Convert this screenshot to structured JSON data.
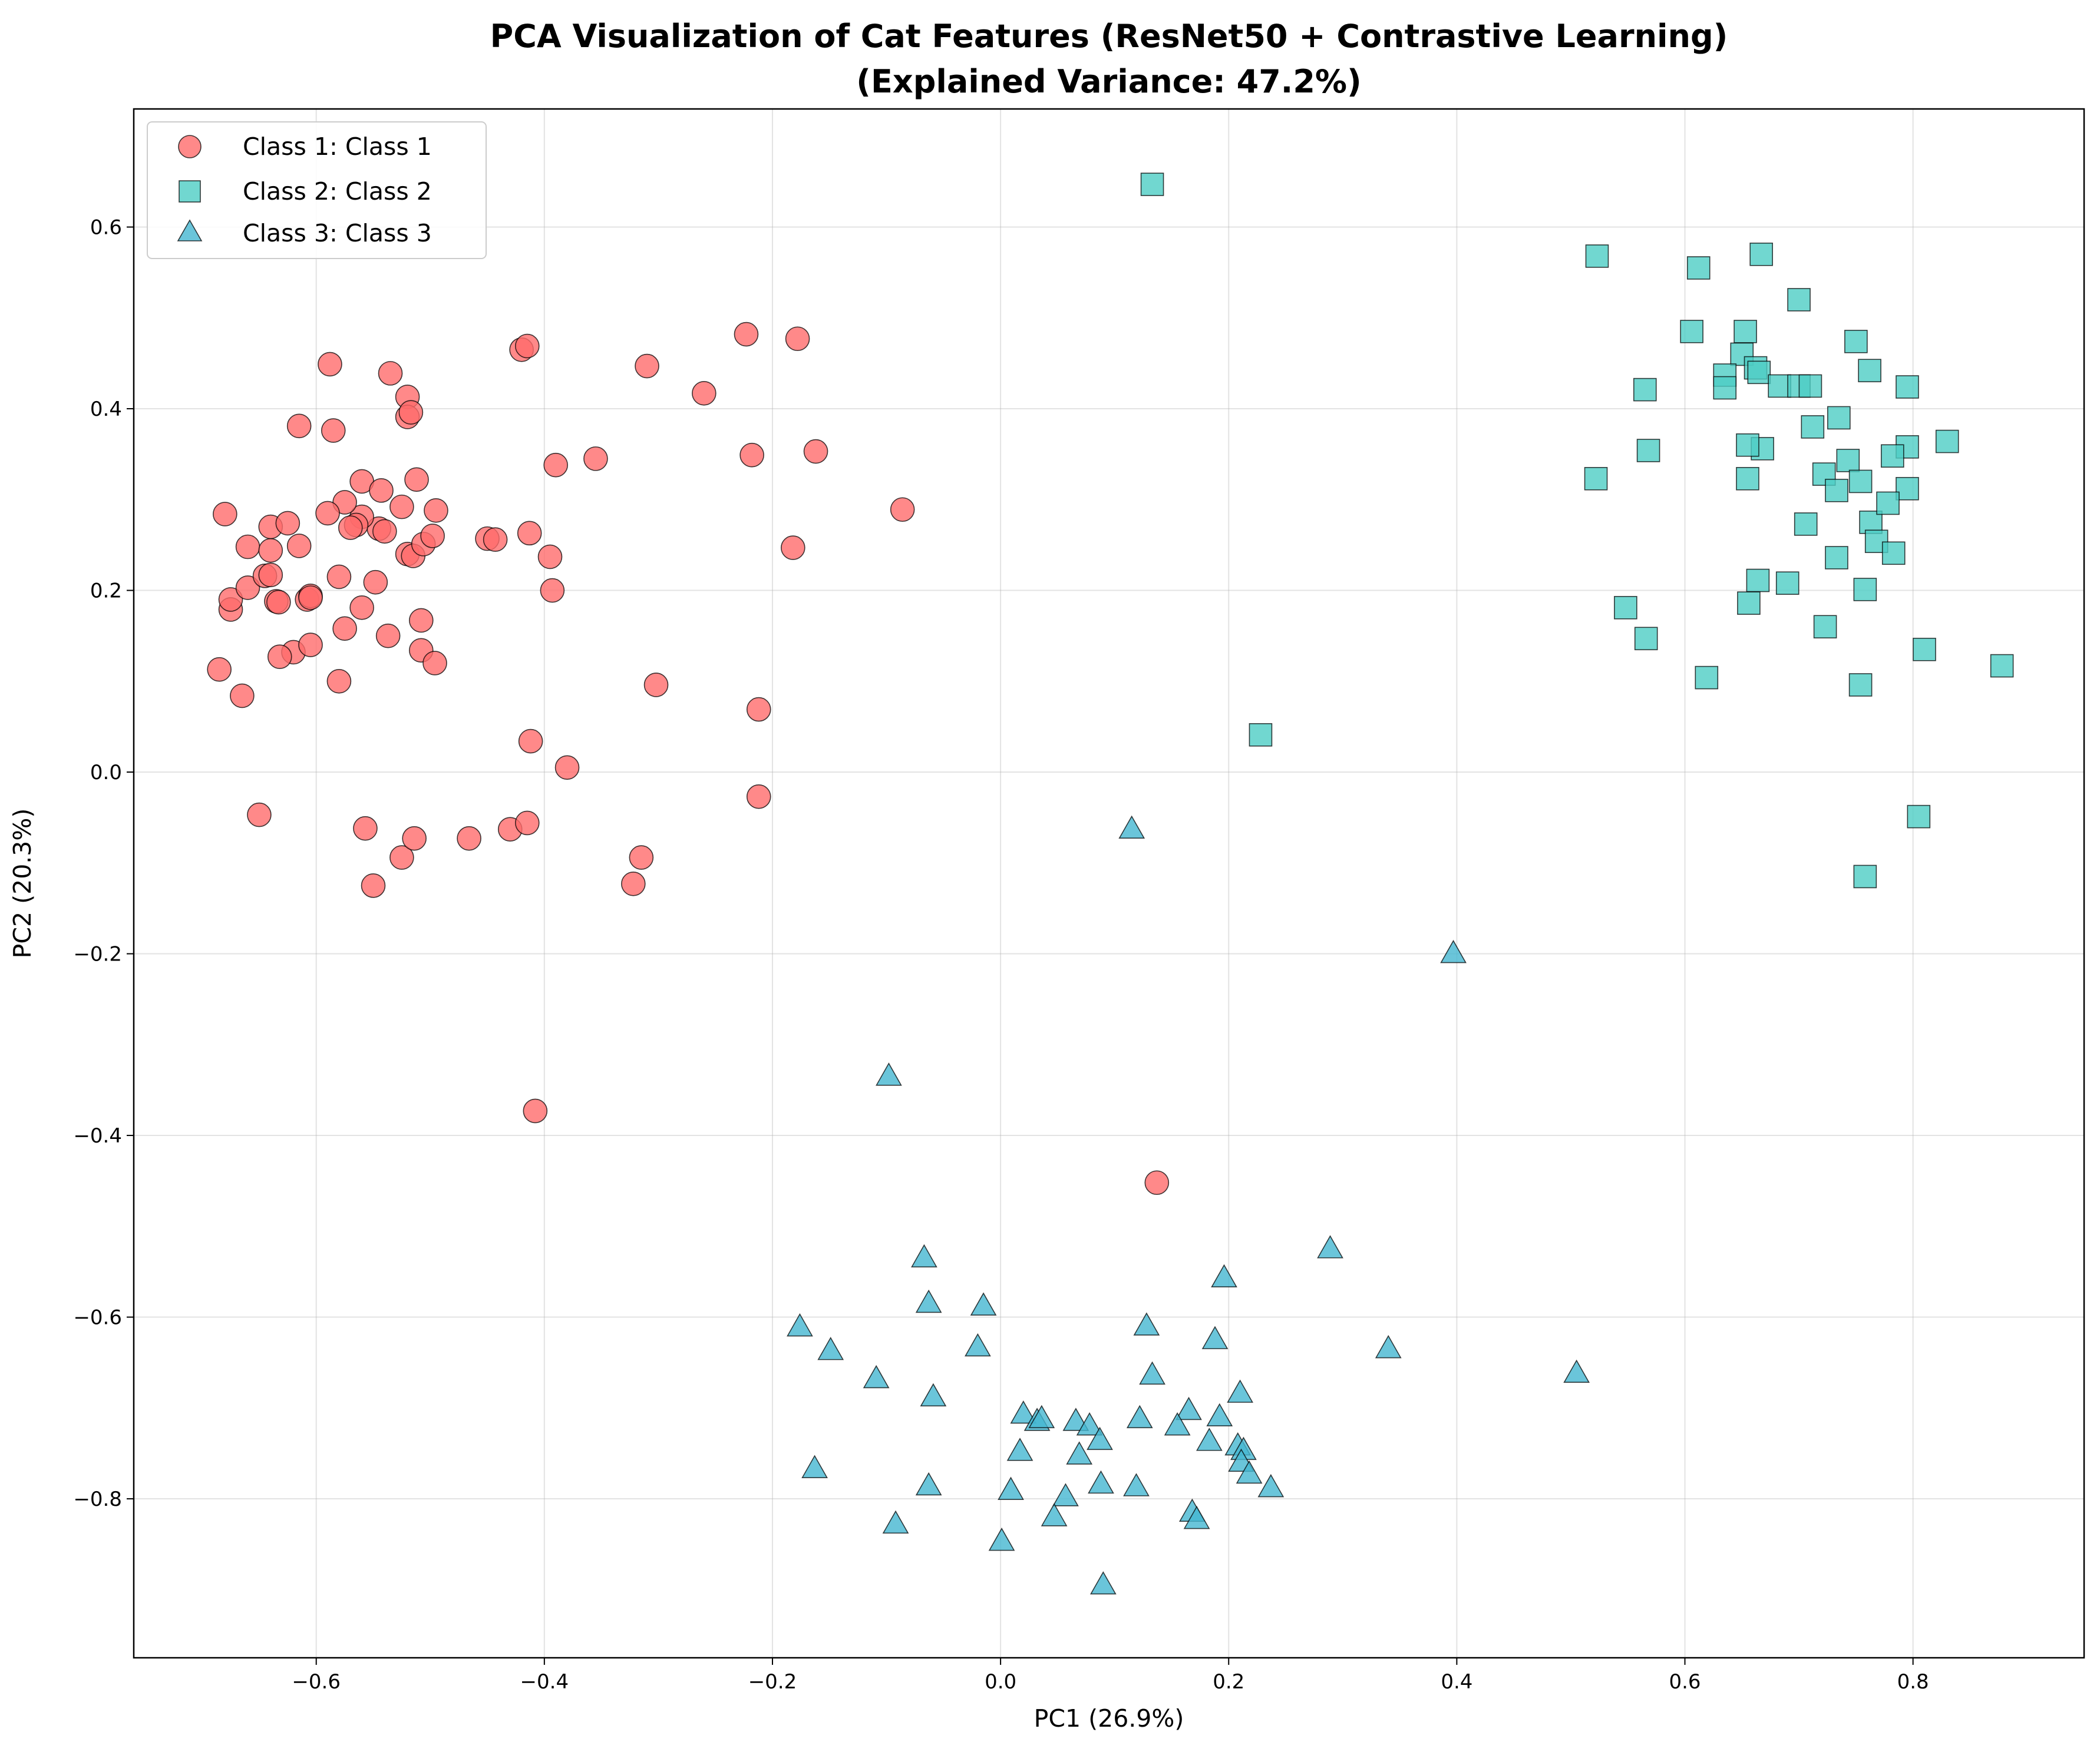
{
  "chart_data": {
    "type": "scatter",
    "title": "PCA Visualization of Cat Features (ResNet50 + Contrastive Learning)",
    "subtitle": "(Explained Variance: 47.2%)",
    "xlabel": "PC1 (26.9%)",
    "ylabel": "PC2 (20.3%)",
    "xlim": [
      -0.76,
      0.95
    ],
    "ylim": [
      -0.975,
      0.73
    ],
    "xticks": [
      -0.6,
      -0.4,
      -0.2,
      0.0,
      0.2,
      0.4,
      0.6,
      0.8
    ],
    "xtick_labels": [
      "−0.6",
      "−0.4",
      "−0.2",
      "0.0",
      "0.2",
      "0.4",
      "0.6",
      "0.8"
    ],
    "yticks": [
      -0.8,
      -0.6,
      -0.4,
      -0.2,
      0.0,
      0.2,
      0.4,
      0.6
    ],
    "ytick_labels": [
      "−0.8",
      "−0.6",
      "−0.4",
      "−0.2",
      "0.0",
      "0.2",
      "0.4",
      "0.6"
    ],
    "grid": true,
    "legend_position": "top-left",
    "series": [
      {
        "name": "Class 1: Class 1",
        "marker": "circle",
        "color": "#ff6b6b",
        "points": [
          [
            -0.68,
            0.284
          ],
          [
            -0.66,
            0.248
          ],
          [
            -0.64,
            0.244
          ],
          [
            -0.64,
            0.27
          ],
          [
            -0.625,
            0.274
          ],
          [
            -0.615,
            0.249
          ],
          [
            -0.675,
            0.179
          ],
          [
            -0.675,
            0.19
          ],
          [
            -0.66,
            0.203
          ],
          [
            -0.645,
            0.216
          ],
          [
            -0.64,
            0.217
          ],
          [
            -0.635,
            0.188
          ],
          [
            -0.633,
            0.187
          ],
          [
            -0.608,
            0.19
          ],
          [
            -0.605,
            0.194
          ],
          [
            -0.62,
            0.132
          ],
          [
            -0.632,
            0.127
          ],
          [
            -0.605,
            0.14
          ],
          [
            -0.685,
            0.113
          ],
          [
            -0.665,
            0.084
          ],
          [
            -0.605,
            0.192
          ],
          [
            -0.58,
            0.215
          ],
          [
            -0.58,
            0.1
          ],
          [
            -0.575,
            0.158
          ],
          [
            -0.56,
            0.181
          ],
          [
            -0.548,
            0.209
          ],
          [
            -0.52,
            0.24
          ],
          [
            -0.515,
            0.238
          ],
          [
            -0.506,
            0.251
          ],
          [
            -0.498,
            0.26
          ],
          [
            -0.495,
            0.288
          ],
          [
            -0.525,
            0.292
          ],
          [
            -0.545,
            0.268
          ],
          [
            -0.56,
            0.32
          ],
          [
            -0.543,
            0.31
          ],
          [
            -0.512,
            0.322
          ],
          [
            -0.56,
            0.281
          ],
          [
            -0.565,
            0.272
          ],
          [
            -0.57,
            0.269
          ],
          [
            -0.575,
            0.297
          ],
          [
            -0.59,
            0.285
          ],
          [
            -0.54,
            0.265
          ],
          [
            -0.585,
            0.376
          ],
          [
            -0.615,
            0.381
          ],
          [
            -0.588,
            0.449
          ],
          [
            -0.535,
            0.439
          ],
          [
            -0.52,
            0.413
          ],
          [
            -0.52,
            0.391
          ],
          [
            -0.517,
            0.396
          ],
          [
            -0.537,
            0.15
          ],
          [
            -0.508,
            0.167
          ],
          [
            -0.508,
            0.134
          ],
          [
            -0.496,
            0.12
          ],
          [
            -0.65,
            -0.047
          ],
          [
            -0.557,
            -0.062
          ],
          [
            -0.55,
            -0.125
          ],
          [
            -0.525,
            -0.094
          ],
          [
            -0.514,
            -0.073
          ],
          [
            -0.466,
            -0.073
          ],
          [
            -0.43,
            -0.063
          ],
          [
            -0.415,
            -0.056
          ],
          [
            -0.45,
            0.257
          ],
          [
            -0.443,
            0.256
          ],
          [
            -0.413,
            0.263
          ],
          [
            -0.395,
            0.237
          ],
          [
            -0.393,
            0.2
          ],
          [
            -0.39,
            0.338
          ],
          [
            -0.42,
            0.465
          ],
          [
            -0.415,
            0.469
          ],
          [
            -0.355,
            0.345
          ],
          [
            -0.412,
            0.034
          ],
          [
            -0.38,
            0.005
          ],
          [
            -0.31,
            0.447
          ],
          [
            -0.26,
            0.417
          ],
          [
            -0.302,
            0.096
          ],
          [
            -0.315,
            -0.094
          ],
          [
            -0.322,
            -0.123
          ],
          [
            -0.223,
            0.482
          ],
          [
            -0.178,
            0.477
          ],
          [
            -0.218,
            0.349
          ],
          [
            -0.162,
            0.353
          ],
          [
            -0.182,
            0.247
          ],
          [
            -0.086,
            0.289
          ],
          [
            -0.212,
            0.069
          ],
          [
            -0.212,
            -0.027
          ],
          [
            -0.408,
            -0.373
          ],
          [
            0.137,
            -0.452
          ]
        ]
      },
      {
        "name": "Class 2: Class 2",
        "marker": "square",
        "color": "#4ecdc4",
        "points": [
          [
            0.133,
            0.647
          ],
          [
            0.523,
            0.568
          ],
          [
            0.612,
            0.555
          ],
          [
            0.667,
            0.57
          ],
          [
            0.7,
            0.52
          ],
          [
            0.606,
            0.485
          ],
          [
            0.653,
            0.485
          ],
          [
            0.75,
            0.474
          ],
          [
            0.65,
            0.46
          ],
          [
            0.662,
            0.445
          ],
          [
            0.635,
            0.437
          ],
          [
            0.665,
            0.44
          ],
          [
            0.635,
            0.423
          ],
          [
            0.683,
            0.425
          ],
          [
            0.7,
            0.425
          ],
          [
            0.71,
            0.425
          ],
          [
            0.762,
            0.442
          ],
          [
            0.795,
            0.424
          ],
          [
            0.565,
            0.421
          ],
          [
            0.568,
            0.354
          ],
          [
            0.668,
            0.356
          ],
          [
            0.655,
            0.36
          ],
          [
            0.712,
            0.38
          ],
          [
            0.735,
            0.39
          ],
          [
            0.83,
            0.364
          ],
          [
            0.795,
            0.358
          ],
          [
            0.782,
            0.348
          ],
          [
            0.743,
            0.343
          ],
          [
            0.722,
            0.328
          ],
          [
            0.754,
            0.32
          ],
          [
            0.733,
            0.31
          ],
          [
            0.522,
            0.323
          ],
          [
            0.655,
            0.323
          ],
          [
            0.795,
            0.312
          ],
          [
            0.706,
            0.273
          ],
          [
            0.763,
            0.275
          ],
          [
            0.778,
            0.296
          ],
          [
            0.768,
            0.254
          ],
          [
            0.733,
            0.236
          ],
          [
            0.783,
            0.241
          ],
          [
            0.664,
            0.211
          ],
          [
            0.69,
            0.208
          ],
          [
            0.758,
            0.201
          ],
          [
            0.548,
            0.181
          ],
          [
            0.656,
            0.186
          ],
          [
            0.566,
            0.147
          ],
          [
            0.723,
            0.16
          ],
          [
            0.81,
            0.135
          ],
          [
            0.619,
            0.104
          ],
          [
            0.754,
            0.096
          ],
          [
            0.878,
            0.117
          ],
          [
            0.228,
            0.041
          ],
          [
            0.805,
            -0.049
          ],
          [
            0.758,
            -0.115
          ]
        ]
      },
      {
        "name": "Class 3: Class 3",
        "marker": "triangle",
        "color": "#45b7d1",
        "points": [
          [
            0.115,
            -0.063
          ],
          [
            0.397,
            -0.2
          ],
          [
            -0.098,
            -0.335
          ],
          [
            0.289,
            -0.525
          ],
          [
            -0.067,
            -0.535
          ],
          [
            0.196,
            -0.557
          ],
          [
            -0.063,
            -0.585
          ],
          [
            -0.015,
            -0.588
          ],
          [
            -0.176,
            -0.611
          ],
          [
            0.128,
            -0.61
          ],
          [
            -0.149,
            -0.637
          ],
          [
            -0.02,
            -0.633
          ],
          [
            0.188,
            -0.625
          ],
          [
            0.34,
            -0.635
          ],
          [
            -0.109,
            -0.668
          ],
          [
            0.133,
            -0.664
          ],
          [
            0.505,
            -0.662
          ],
          [
            -0.059,
            -0.688
          ],
          [
            0.21,
            -0.684
          ],
          [
            0.165,
            -0.703
          ],
          [
            0.02,
            -0.707
          ],
          [
            0.032,
            -0.715
          ],
          [
            0.036,
            -0.712
          ],
          [
            0.066,
            -0.715
          ],
          [
            0.078,
            -0.72
          ],
          [
            0.122,
            -0.712
          ],
          [
            0.192,
            -0.71
          ],
          [
            0.155,
            -0.72
          ],
          [
            0.087,
            -0.736
          ],
          [
            0.183,
            -0.737
          ],
          [
            0.208,
            -0.742
          ],
          [
            0.213,
            -0.747
          ],
          [
            0.069,
            -0.752
          ],
          [
            0.017,
            -0.748
          ],
          [
            0.211,
            -0.76
          ],
          [
            0.218,
            -0.773
          ],
          [
            0.237,
            -0.788
          ],
          [
            -0.163,
            -0.767
          ],
          [
            -0.063,
            -0.786
          ],
          [
            0.009,
            -0.791
          ],
          [
            0.088,
            -0.784
          ],
          [
            0.119,
            -0.787
          ],
          [
            0.057,
            -0.798
          ],
          [
            0.047,
            -0.82
          ],
          [
            0.168,
            -0.815
          ],
          [
            0.172,
            -0.823
          ],
          [
            -0.092,
            -0.828
          ],
          [
            0.001,
            -0.847
          ],
          [
            0.09,
            -0.895
          ]
        ]
      }
    ]
  }
}
